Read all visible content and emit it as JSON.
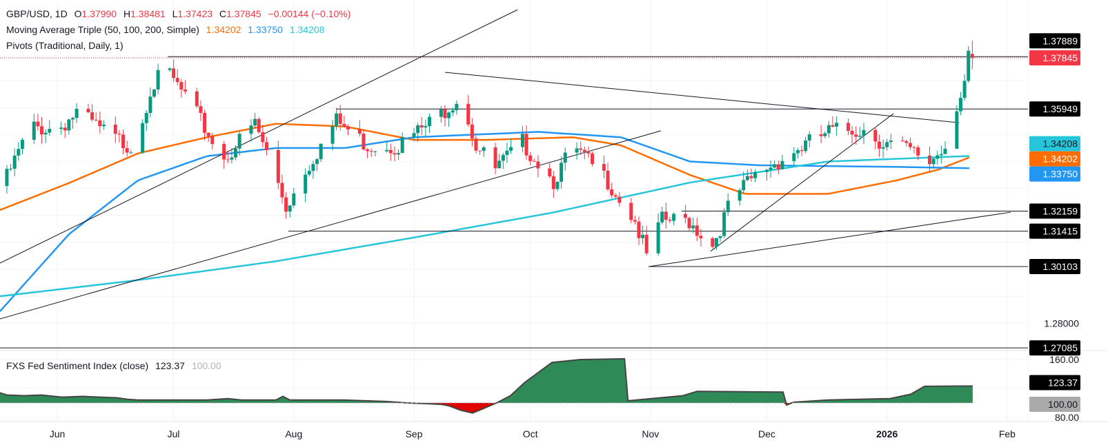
{
  "header": {
    "symbol": "GBP/USD, 1D",
    "open_label": "O",
    "open": "1.37990",
    "high_label": "H",
    "high": "1.38481",
    "low_label": "L",
    "low": "1.37423",
    "close_label": "C",
    "close": "1.37845",
    "change": "−0.00144 (−0.10%)"
  },
  "ma_legend": {
    "label": "Moving Average Triple (50, 100, 200, Simple)",
    "ma50": "1.34202",
    "ma100": "1.33750",
    "ma200": "1.34208"
  },
  "pivots_legend": {
    "label": "Pivots (Traditional, Daily, 1)"
  },
  "sentiment_legend": {
    "label": "FXS Fed Sentiment Index (close)",
    "value": "123.37",
    "baseline": "100.00"
  },
  "colors": {
    "up": "#089981",
    "down": "#f23645",
    "ma50": "#ff6d00",
    "ma100": "#2196f3",
    "ma200": "#26c6da",
    "sentiment_fill": "#2e8b57",
    "sentiment_neg": "#e00000"
  },
  "chart_data": {
    "type": "candlestick",
    "title": "GBP/USD, 1D",
    "x_unit": "days since 2025-06-01",
    "x_ticks": [
      {
        "day": 0,
        "label": "Jun"
      },
      {
        "day": 30,
        "label": "Jul"
      },
      {
        "day": 61,
        "label": "Aug"
      },
      {
        "day": 92,
        "label": "Sep"
      },
      {
        "day": 122,
        "label": "Oct"
      },
      {
        "day": 153,
        "label": "Nov"
      },
      {
        "day": 183,
        "label": "Dec"
      },
      {
        "day": 214,
        "label": "2026"
      },
      {
        "day": 245,
        "label": "Feb"
      }
    ],
    "y_range": [
      1.2668,
      1.3998
    ],
    "y_ticks": [
      "1.28000"
    ],
    "close_path": [
      [
        -14,
        1.3309
      ],
      [
        -7,
        1.3527
      ],
      [
        0,
        1.352
      ],
      [
        5,
        1.358
      ],
      [
        14,
        1.349
      ],
      [
        20,
        1.345
      ],
      [
        24,
        1.367
      ],
      [
        28,
        1.374
      ],
      [
        33,
        1.364
      ],
      [
        43,
        1.341
      ],
      [
        51,
        1.354
      ],
      [
        56,
        1.336
      ],
      [
        59,
        1.323
      ],
      [
        64,
        1.337
      ],
      [
        72,
        1.355
      ],
      [
        80,
        1.346
      ],
      [
        88,
        1.346
      ],
      [
        97,
        1.355
      ],
      [
        104,
        1.365
      ],
      [
        108,
        1.346
      ],
      [
        113,
        1.337
      ],
      [
        120,
        1.347
      ],
      [
        128,
        1.333
      ],
      [
        133,
        1.345
      ],
      [
        142,
        1.333
      ],
      [
        149,
        1.318
      ],
      [
        152,
        1.305
      ],
      [
        156,
        1.318
      ],
      [
        163,
        1.318
      ],
      [
        169,
        1.309
      ],
      [
        174,
        1.326
      ],
      [
        181,
        1.336
      ],
      [
        188,
        1.342
      ],
      [
        199,
        1.351
      ],
      [
        208,
        1.352
      ],
      [
        213,
        1.347
      ],
      [
        218,
        1.345
      ],
      [
        225,
        1.34
      ],
      [
        229,
        1.346
      ],
      [
        232,
        1.3615
      ],
      [
        234,
        1.37
      ],
      [
        235,
        1.3799
      ],
      [
        236,
        1.37845
      ]
    ],
    "last_candle": {
      "open": 1.3799,
      "high": 1.38481,
      "low": 1.37423,
      "close": 1.37845
    },
    "moving_averages": [
      {
        "name": "MA50",
        "color": "#ff6d00",
        "points": [
          [
            -14.8,
            1.322
          ],
          [
            3,
            1.332
          ],
          [
            20.8,
            1.343
          ],
          [
            38.6,
            1.349
          ],
          [
            56.4,
            1.354
          ],
          [
            74.2,
            1.353
          ],
          [
            92,
            1.348
          ],
          [
            109.8,
            1.348
          ],
          [
            133,
            1.349
          ],
          [
            145.4,
            1.346
          ],
          [
            163.2,
            1.335
          ],
          [
            177.4,
            1.328
          ],
          [
            198.8,
            1.328
          ],
          [
            216.5,
            1.333
          ],
          [
            227.2,
            1.337
          ],
          [
            236.1,
            1.342
          ]
        ]
      },
      {
        "name": "MA100",
        "color": "#2196f3",
        "points": [
          [
            -14.8,
            1.2844
          ],
          [
            3,
            1.313
          ],
          [
            20.8,
            1.333
          ],
          [
            38.6,
            1.342
          ],
          [
            56.4,
            1.345
          ],
          [
            74.2,
            1.345
          ],
          [
            92,
            1.349
          ],
          [
            124,
            1.351
          ],
          [
            145.4,
            1.349
          ],
          [
            163.2,
            1.34
          ],
          [
            181,
            1.3386
          ],
          [
            216.5,
            1.338
          ],
          [
            236.1,
            1.3375
          ]
        ]
      },
      {
        "name": "MA200",
        "color": "#26c6da",
        "points": [
          [
            -14.8,
            1.29
          ],
          [
            20.8,
            1.296
          ],
          [
            56.4,
            1.303
          ],
          [
            92,
            1.3118
          ],
          [
            127.6,
            1.321
          ],
          [
            163.2,
            1.3322
          ],
          [
            198.8,
            1.34
          ],
          [
            236.1,
            1.3421
          ]
        ]
      }
    ],
    "trendlines": [
      [
        [
          -14.8,
          1.3023
        ],
        [
          118.7,
          1.3963
        ]
      ],
      [
        [
          -14.8,
          1.2816
        ],
        [
          155.7,
          1.3514
        ]
      ],
      [
        [
          100,
          1.3731
        ],
        [
          232.6,
          1.3544
        ]
      ],
      [
        [
          152.5,
          1.301
        ],
        [
          245.9,
          1.3212
        ]
      ],
      [
        [
          168.5,
          1.3067
        ],
        [
          215.7,
          1.3578
        ]
      ]
    ],
    "levels": [
      {
        "value": 1.37889,
        "label": "1.37889",
        "from_day": 28.5,
        "bg": "#000000",
        "fg": "#ffffff"
      },
      {
        "value": 1.37845,
        "label": "1.37845",
        "from_day": -15,
        "bg": "#f23645",
        "fg": "#ffffff",
        "dotted": true
      },
      {
        "value": 1.35949,
        "label": "1.35949",
        "from_day": 72,
        "bg": "#000000",
        "fg": "#ffffff"
      },
      {
        "value": 1.32159,
        "label": "1.32159",
        "from_day": 161,
        "bg": "#000000",
        "fg": "#ffffff"
      },
      {
        "value": 1.31415,
        "label": "1.31415",
        "from_day": 59.6,
        "bg": "#000000",
        "fg": "#ffffff"
      },
      {
        "value": 1.30103,
        "label": "1.30103",
        "from_day": 152.5,
        "bg": "#000000",
        "fg": "#ffffff"
      },
      {
        "value": 1.27085,
        "label": "1.27085",
        "from_day": -15,
        "bg": "#000000",
        "fg": "#ffffff"
      }
    ],
    "ma_labels": [
      {
        "value": 1.34208,
        "label": "1.34208",
        "bg": "#26c6da",
        "fg": "#131722"
      },
      {
        "value": 1.34202,
        "label": "1.34202",
        "bg": "#ff6d00",
        "fg": "#ffffff"
      },
      {
        "value": 1.3375,
        "label": "1.33750",
        "bg": "#2196f3",
        "fg": "#ffffff"
      }
    ],
    "sentiment": {
      "y_range": [
        75,
        166
      ],
      "y_ticks": [
        "160.00",
        "80.00"
      ],
      "baseline": 100,
      "current": "123.37",
      "points": [
        [
          -14.8,
          114
        ],
        [
          -13,
          111
        ],
        [
          -8.5,
          110
        ],
        [
          -4.1,
          111
        ],
        [
          1.2,
          108
        ],
        [
          6.6,
          109
        ],
        [
          15.5,
          107
        ],
        [
          18.1,
          105
        ],
        [
          20.8,
          104
        ],
        [
          28.8,
          104
        ],
        [
          38.6,
          104
        ],
        [
          44,
          106
        ],
        [
          47.5,
          104
        ],
        [
          56.4,
          104
        ],
        [
          58.2,
          109
        ],
        [
          60,
          104
        ],
        [
          74.2,
          104
        ],
        [
          84.9,
          102
        ],
        [
          90.2,
          100
        ],
        [
          99.1,
          98
        ],
        [
          101,
          96
        ],
        [
          104,
          90
        ],
        [
          107.1,
          86
        ],
        [
          109.8,
          92
        ],
        [
          113.3,
          100
        ],
        [
          116.9,
          110
        ],
        [
          120.5,
          128
        ],
        [
          127.6,
          156
        ],
        [
          135,
          160
        ],
        [
          146.3,
          161
        ],
        [
          147.2,
          103
        ],
        [
          161.4,
          110
        ],
        [
          165,
          116
        ],
        [
          187.2,
          115
        ],
        [
          188.1,
          97
        ],
        [
          189.9,
          101
        ],
        [
          198.8,
          104
        ],
        [
          214.8,
          106
        ],
        [
          220.1,
          112
        ],
        [
          223.7,
          123
        ],
        [
          236.1,
          123.37
        ]
      ]
    }
  }
}
